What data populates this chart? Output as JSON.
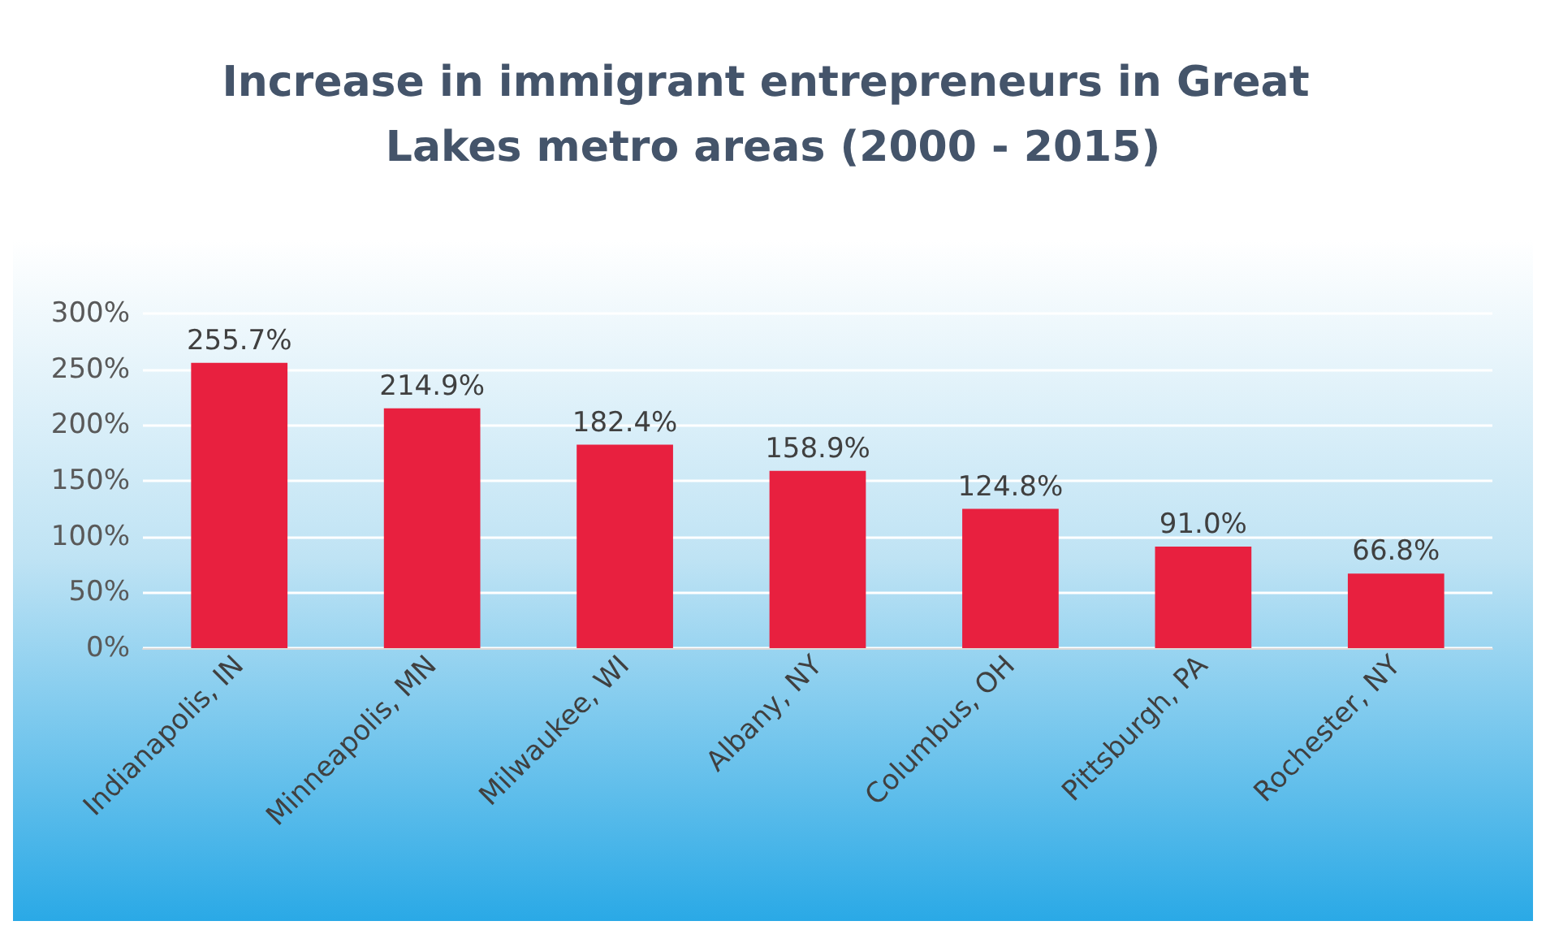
{
  "chart_data": {
    "type": "bar",
    "title": "Increase in immigrant entrepreneurs in Great Lakes metro areas (2000 - 2015)",
    "categories": [
      "Indianapolis, IN",
      "Minneapolis, MN",
      "Milwaukee, WI",
      "Albany, NY",
      "Columbus, OH",
      "Pittsburgh, PA",
      "Rochester, NY"
    ],
    "values": [
      255.7,
      214.9,
      182.4,
      158.9,
      124.8,
      91.0,
      66.8
    ],
    "value_labels": [
      "255.7%",
      "214.9%",
      "182.4%",
      "158.9%",
      "124.8%",
      "91.0%",
      "66.8%"
    ],
    "color": "#e8203f",
    "ylim": [
      0,
      300
    ],
    "yticks": [
      {
        "value": 0,
        "label": "0%"
      },
      {
        "value": 50,
        "label": "50%"
      },
      {
        "value": 100,
        "label": "100%"
      },
      {
        "value": 150,
        "label": "150%"
      },
      {
        "value": 200,
        "label": "200%"
      },
      {
        "value": 250,
        "label": "250%"
      },
      {
        "value": 300,
        "label": "300%"
      }
    ],
    "grid": true
  }
}
